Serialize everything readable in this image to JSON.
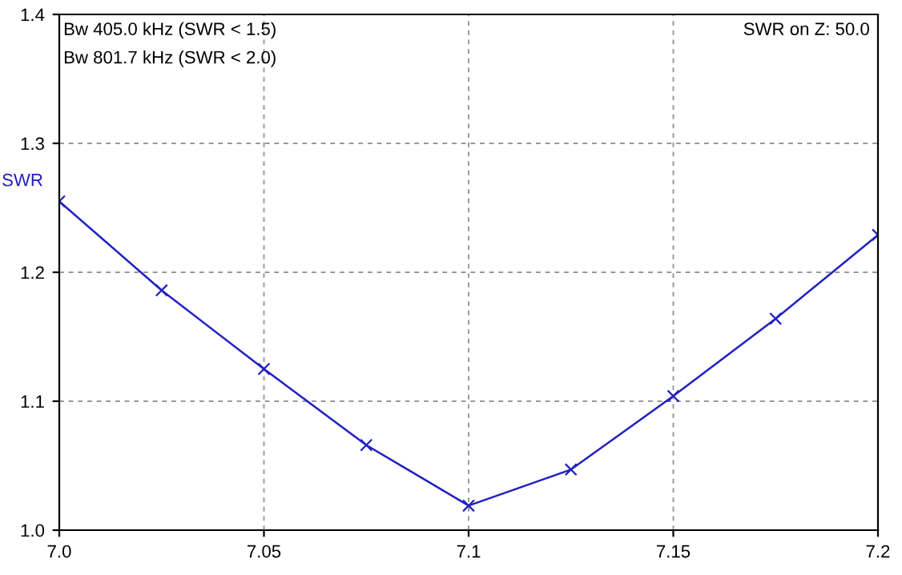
{
  "chart_data": {
    "type": "line",
    "ylabel": "SWR",
    "annotations": [
      "Bw 405.0 kHz (SWR < 1.5)",
      "Bw 801.7 kHz (SWR < 2.0)",
      "SWR on Z: 50.0"
    ],
    "x": [
      7.0,
      7.025,
      7.05,
      7.075,
      7.1,
      7.125,
      7.15,
      7.175,
      7.2
    ],
    "series": [
      {
        "color": "#2020c0",
        "values": [
          1.255,
          1.186,
          1.125,
          1.066,
          1.019,
          1.047,
          1.104,
          1.164,
          1.229
        ]
      }
    ],
    "xlim": [
      7.0,
      7.2
    ],
    "ylim": [
      1.0,
      1.4
    ],
    "xticks": [
      {
        "value": 7.0,
        "label": "7.0"
      },
      7.05,
      7.1,
      7.15,
      {
        "value": 7.2,
        "label": "7.2"
      }
    ],
    "yticks": [
      {
        "value": 1.0,
        "label": "1.0"
      },
      1.1,
      1.2,
      1.3,
      1.4
    ],
    "grid": true,
    "marker": "cross",
    "line_style": "solid"
  }
}
